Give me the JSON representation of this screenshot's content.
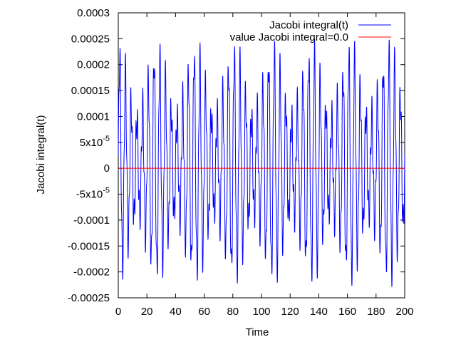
{
  "chart_data": {
    "type": "line",
    "title": "",
    "xlabel": "Time",
    "ylabel": "Jacobi integral(t)",
    "xlim": [
      0,
      200
    ],
    "ylim": [
      -0.00025,
      0.0003
    ],
    "x_ticks": [
      {
        "value": 0,
        "label": "0"
      },
      {
        "value": 20,
        "label": "20"
      },
      {
        "value": 40,
        "label": "40"
      },
      {
        "value": 60,
        "label": "60"
      },
      {
        "value": 80,
        "label": "80"
      },
      {
        "value": 100,
        "label": "100"
      },
      {
        "value": 120,
        "label": "120"
      },
      {
        "value": 140,
        "label": "140"
      },
      {
        "value": 160,
        "label": "160"
      },
      {
        "value": 180,
        "label": "180"
      },
      {
        "value": 200,
        "label": "200"
      }
    ],
    "y_ticks": [
      {
        "value": 0.0003,
        "label": "0.0003"
      },
      {
        "value": 0.00025,
        "label": "0.00025"
      },
      {
        "value": 0.0002,
        "label": "0.0002"
      },
      {
        "value": 0.00015,
        "label": "0.00015"
      },
      {
        "value": 0.0001,
        "label": "0.0001"
      },
      {
        "value": 5e-05,
        "label": "5x10",
        "exp": "-5"
      },
      {
        "value": 0,
        "label": "0"
      },
      {
        "value": -5e-05,
        "label": "-5x10",
        "exp": "-5"
      },
      {
        "value": -0.0001,
        "label": "-0.0001"
      },
      {
        "value": -0.00015,
        "label": "-0.00015"
      },
      {
        "value": -0.0002,
        "label": "-0.0002"
      },
      {
        "value": -0.00025,
        "label": "-0.00025"
      }
    ],
    "grid": false,
    "legend_position": "top-right",
    "series": [
      {
        "name": "Jacobi integral(t)",
        "color": "#0000ff",
        "x_range": [
          0,
          200
        ],
        "oscillation_period": 4.0,
        "amplitude_max": 0.00026,
        "amplitude_min": -0.000235
      },
      {
        "name": "value Jacobi integral=0.0",
        "color": "#ff0000",
        "x": [
          0,
          200
        ],
        "y": [
          0,
          0
        ]
      }
    ]
  }
}
